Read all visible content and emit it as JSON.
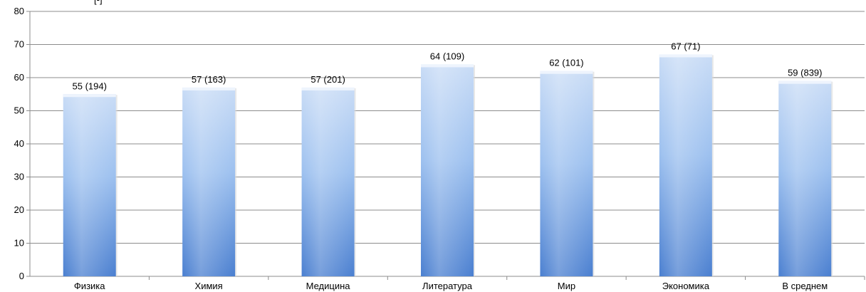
{
  "chart_data": {
    "type": "bar",
    "title": "",
    "xlabel": "",
    "ylabel": "",
    "y_unit_label": "[-]",
    "ylim": [
      0,
      80
    ],
    "yticks": [
      0,
      10,
      20,
      30,
      40,
      50,
      60,
      70,
      80
    ],
    "grid": true,
    "legend": "none",
    "categories": [
      "Физика",
      "Химия",
      "Медицина",
      "Литература",
      "Мир",
      "Экономика",
      "В среднем"
    ],
    "values": [
      55,
      57,
      57,
      64,
      62,
      67,
      59
    ],
    "data_labels": [
      "55 (194)",
      "57 (163)",
      "57 (201)",
      "64 (109)",
      "62 (101)",
      "67 (71)",
      "59 (839)"
    ],
    "colors": {
      "bar_light": "#c9dcf6",
      "bar_mid": "#9cc0ef",
      "bar_dark": "#4a7fd0",
      "grid": "#8c8c8c"
    }
  }
}
